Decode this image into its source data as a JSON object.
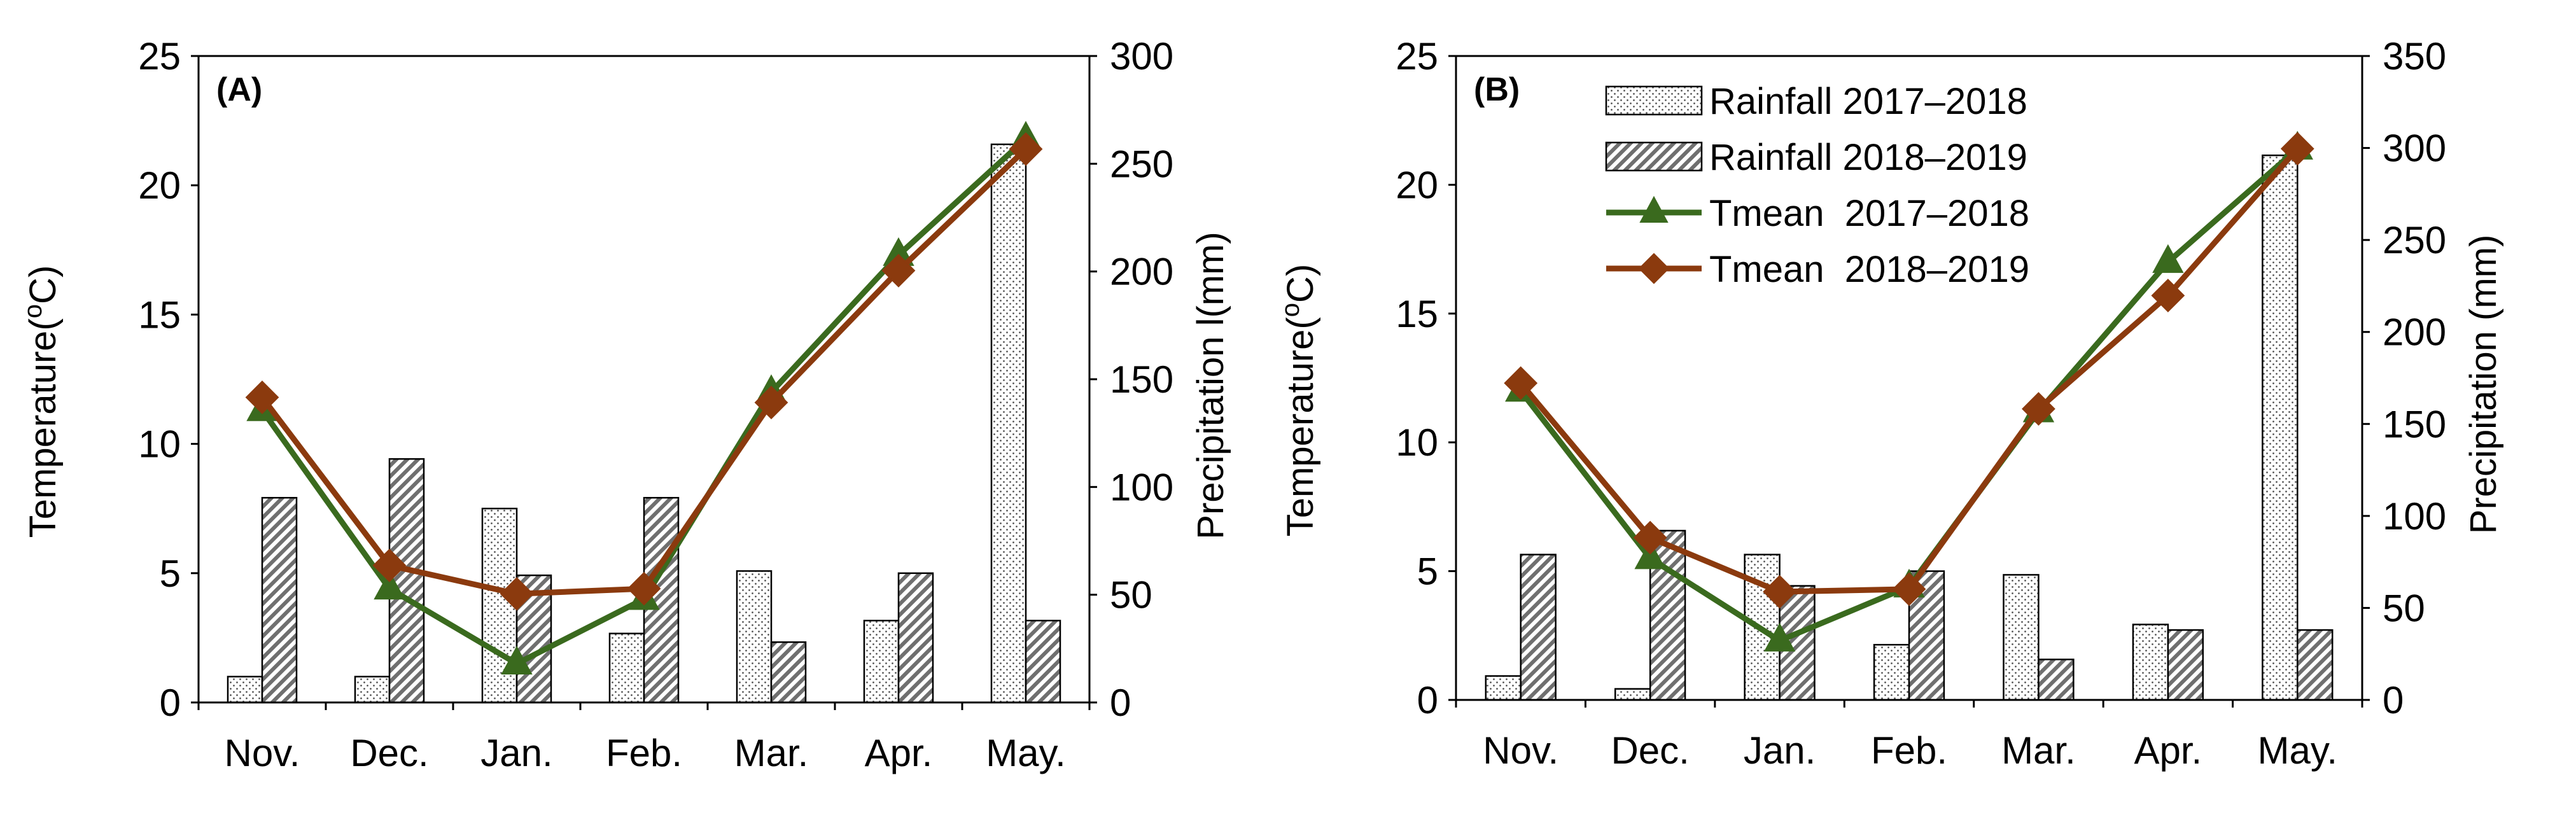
{
  "colors": {
    "tmean_2017_2018": "#3a6a1e",
    "tmean_2018_2019": "#8b3a0e",
    "axis": "#000000"
  },
  "chart_data": [
    {
      "type": "bar+line",
      "panel_label": "(A)",
      "categories": [
        "Nov.",
        "Dec.",
        "Jan.",
        "Feb.",
        "Mar.",
        "Apr.",
        "May."
      ],
      "y_left": {
        "label": "Temperature(°C)",
        "label_main": "Temperature(",
        "label_sup": "o",
        "label_unit": "C)",
        "ylim": [
          0,
          25
        ],
        "ticks": [
          0,
          5,
          10,
          15,
          20,
          25
        ]
      },
      "y_right": {
        "label": "Precipitation l(mm)",
        "ylim": [
          0,
          300
        ],
        "ticks": [
          0,
          50,
          100,
          150,
          200,
          250,
          300
        ]
      },
      "bar_series": [
        {
          "name": "Rainfall 2017–2018",
          "axis": "right",
          "pattern": "dots",
          "values": [
            12,
            12,
            90,
            32,
            61,
            38,
            259
          ]
        },
        {
          "name": "Rainfall 2018–2019",
          "axis": "right",
          "pattern": "hatch",
          "values": [
            95,
            113,
            59,
            95,
            28,
            60,
            38
          ]
        }
      ],
      "line_series": [
        {
          "name": "Tmean 2017–2018",
          "axis": "left",
          "marker": "triangle",
          "color": "#3a6a1e",
          "values": [
            11.3,
            4.4,
            1.5,
            4.0,
            12.0,
            17.3,
            21.8
          ]
        },
        {
          "name": "Tmean 2018–2019",
          "axis": "left",
          "marker": "diamond",
          "color": "#8b3a0e",
          "values": [
            11.8,
            5.3,
            4.2,
            4.4,
            11.6,
            16.7,
            21.4
          ]
        }
      ],
      "legend": null
    },
    {
      "type": "bar+line",
      "panel_label": "(B)",
      "categories": [
        "Nov.",
        "Dec.",
        "Jan.",
        "Feb.",
        "Mar.",
        "Apr.",
        "May."
      ],
      "y_left": {
        "label": "Temperature(°C)",
        "label_main": "Temperature(",
        "label_sup": "o",
        "label_unit": "C)",
        "ylim": [
          0,
          25
        ],
        "ticks": [
          0,
          5,
          10,
          15,
          20,
          25
        ]
      },
      "y_right": {
        "label": "Precipitation (mm)",
        "ylim": [
          0,
          350
        ],
        "ticks": [
          0,
          50,
          100,
          150,
          200,
          250,
          300,
          350
        ]
      },
      "bar_series": [
        {
          "name": "Rainfall 2017–2018",
          "axis": "right",
          "pattern": "dots",
          "values": [
            13,
            6,
            79,
            30,
            68,
            41,
            296
          ]
        },
        {
          "name": "Rainfall 2018–2019",
          "axis": "right",
          "pattern": "hatch",
          "values": [
            79,
            92,
            62,
            70,
            22,
            38,
            38
          ]
        }
      ],
      "line_series": [
        {
          "name": "Tmean 2017–2018",
          "axis": "left",
          "marker": "triangle",
          "color": "#3a6a1e",
          "values": [
            12.0,
            5.5,
            2.3,
            4.4,
            11.2,
            17.0,
            21.4
          ]
        },
        {
          "name": "Tmean 2018–2019",
          "axis": "left",
          "marker": "diamond",
          "color": "#8b3a0e",
          "values": [
            12.3,
            6.3,
            4.2,
            4.3,
            11.3,
            15.7,
            21.4
          ]
        }
      ],
      "legend": {
        "placement": "top-center",
        "entries": [
          {
            "label": "Rainfall 2017–2018",
            "kind": "bar",
            "pattern": "dots"
          },
          {
            "label": "Rainfall 2018–2019",
            "kind": "bar",
            "pattern": "hatch"
          },
          {
            "label": "Tmean  2017–2018",
            "kind": "line",
            "marker": "triangle",
            "color": "#3a6a1e"
          },
          {
            "label": "Tmean  2018–2019",
            "kind": "line",
            "marker": "diamond",
            "color": "#8b3a0e"
          }
        ]
      }
    }
  ]
}
